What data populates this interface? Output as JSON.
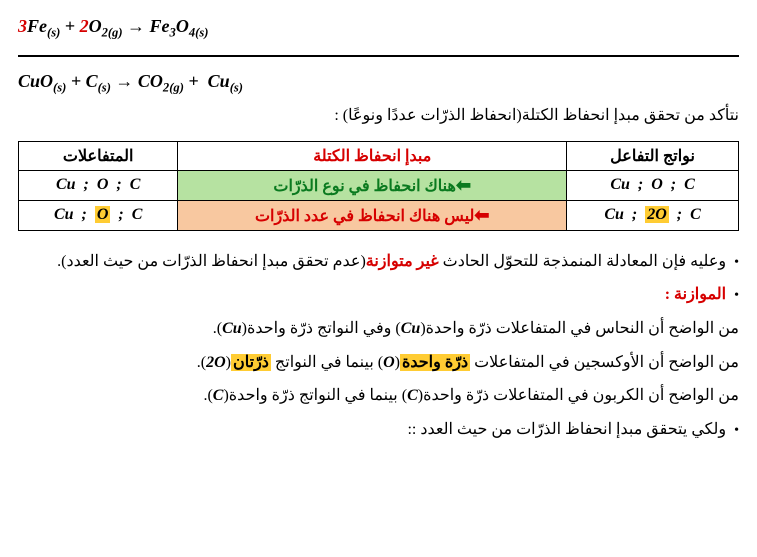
{
  "eq1": {
    "coef1": "3",
    "sp1": "Fe",
    "sp1_state": "(s)",
    "coef2": "2",
    "sp2": "O",
    "sp2_sub": "2",
    "sp2_state": "(g)",
    "arrow": "→",
    "sp3": "Fe",
    "sp3_sub1": "3",
    "sp3b": "O",
    "sp3_sub2": "4",
    "sp3_state": "(s)"
  },
  "eq2": {
    "sp1": "CuO",
    "sp1_state": "(s)",
    "sp2": "C",
    "sp2_state": "(s)",
    "arrow": "→",
    "sp3": "CO",
    "sp3_sub": "2",
    "sp3_state": "(g)",
    "sp4": "Cu",
    "sp4_state": "(s)"
  },
  "line_check": "نتأكد من تحقق مبدإ انحفاظ الكتلة(انحفاظ الذرّات عددًا ونوعًا) :",
  "table": {
    "header_products": "نواتج التفاعل",
    "header_conservation": "مبدإ انحفاظ الكتلة",
    "header_reactants": "المتفاعلات",
    "row1_products": {
      "a": "Cu",
      "b": "O",
      "c": "C"
    },
    "row1_msg": "هناك انحفاظ في نوع الذرّات",
    "row1_reactants": {
      "a": "Cu",
      "b": "O",
      "c": "C"
    },
    "row2_products": {
      "a": "Cu",
      "b": "2O",
      "c": "C"
    },
    "row2_msg": "ليس هناك انحفاظ في عدد الذرّات",
    "row2_reactants": {
      "a": "Cu",
      "b": "O",
      "c": "C"
    }
  },
  "para1_a": "وعليه فإن المعادلة المنمذجة للتحوّل الحادث ",
  "para1_red": "غير متوازنة",
  "para1_b": "(عدم تحقق مبدإ انحفاظ الذرّات من حيث العدد).",
  "heading_balance": "الموازنة :",
  "line_cu_a": "من الواضح أن النحاس في المتفاعلات ذرّة واحدة(",
  "cu_sym": "Cu",
  "line_cu_b": ") وفي النواتج ذرّة واحدة(",
  "line_cu_c": ").",
  "line_o_a": "من الواضح أن الأوكسجين في المتفاعلات ",
  "line_o_hl1": "ذرّة واحدة",
  "o_sym": "O",
  "line_o_b": " بينما في النواتج ",
  "line_o_hl2": "ذرّتان",
  "o2_sym": "2O",
  "line_o_c": ".",
  "line_c_a": "من الواضح أن الكربون في المتفاعلات ذرّة واحدة(",
  "c_sym": "C",
  "line_c_b": ") بينما في النواتج ذرّة واحدة(",
  "line_c_c": ").",
  "line_last": "ولكي يتحقق مبدإ انحفاظ الذرّات من حيث العدد ::",
  "bullet": "•",
  "arrow_left": "⬅"
}
